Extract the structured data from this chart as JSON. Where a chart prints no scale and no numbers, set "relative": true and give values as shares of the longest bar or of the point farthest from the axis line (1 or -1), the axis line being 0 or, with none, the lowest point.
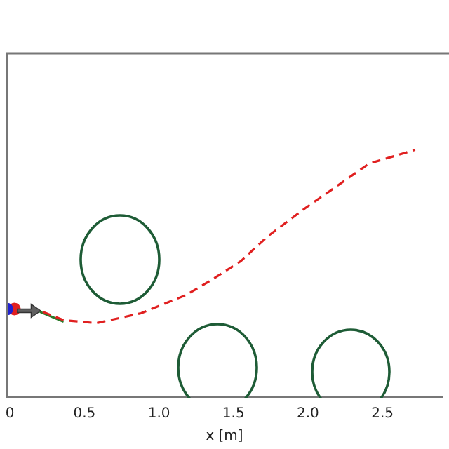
{
  "chart_data": {
    "type": "line",
    "xlabel": "x [m]",
    "relative": true,
    "xlim": [
      -0.02,
      2.9
    ],
    "xticks": [
      {
        "value": 0,
        "label": "0"
      },
      0.5,
      {
        "value": 1,
        "label": "1.0"
      },
      1.5,
      {
        "value": 2,
        "label": "2.0"
      },
      2.5
    ],
    "tick_labels": "x",
    "grid": false,
    "legend": false,
    "line_style": "solid",
    "series": [
      {
        "color": "#e02020",
        "line_style": "dashed",
        "x": [
          0.22,
          0.36,
          0.58,
          0.88,
          1.18,
          1.37,
          1.55,
          1.73,
          1.98,
          2.41,
          2.72
        ],
        "values": [
          0.345,
          0.311,
          0.299,
          0.339,
          0.412,
          0.48,
          0.55,
          0.65,
          0.763,
          0.944,
          1
        ]
      },
      {
        "color": "#2a7a2a",
        "x": [
          0.2,
          0.3,
          0.36
        ],
        "values": [
          0.345,
          0.32,
          0.305
        ]
      },
      {
        "type": "scatter",
        "marker": "circle",
        "color": "#2020d0",
        "x": [
          -0.02
        ],
        "values": [
          0.356
        ]
      },
      {
        "type": "scatter",
        "marker": "circle",
        "color": "#e02020",
        "x": [
          0.03
        ],
        "values": [
          0.356
        ]
      }
    ]
  }
}
